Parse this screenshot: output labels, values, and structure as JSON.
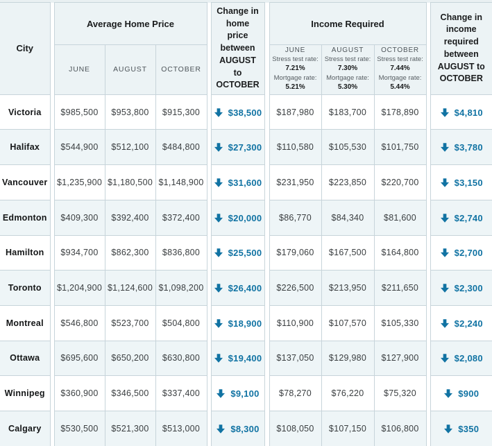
{
  "chart_data": {
    "type": "table",
    "header": {
      "city": "City",
      "home_price_group": "Average Home Price",
      "price_months": [
        "JUNE",
        "AUGUST",
        "OCTOBER"
      ],
      "change_price": "Change in home price between AUGUST to OCTOBER",
      "income_group": "Income Required",
      "income_months": [
        {
          "month": "JUNE",
          "stress_label": "Stress test rate:",
          "stress_rate": "7.21%",
          "mortgage_label": "Mortgage rate:",
          "mortgage_rate": "5.21%"
        },
        {
          "month": "AUGUST",
          "stress_label": "Stress test rate:",
          "stress_rate": "7.30%",
          "mortgage_label": "Mortgage rate:",
          "mortgage_rate": "5.30%"
        },
        {
          "month": "OCTOBER",
          "stress_label": "Stress test rate:",
          "stress_rate": "7.44%",
          "mortgage_label": "Mortgage rate:",
          "mortgage_rate": "5.44%"
        }
      ],
      "change_income": "Change in income required between AUGUST to OCTOBER"
    },
    "rows": [
      {
        "city": "Victoria",
        "price": [
          "$985,500",
          "$953,800",
          "$915,300"
        ],
        "price_change": "$38,500",
        "income": [
          "$187,980",
          "$183,700",
          "$178,890"
        ],
        "income_change": "$4,810",
        "change_direction": "down"
      },
      {
        "city": "Halifax",
        "price": [
          "$544,900",
          "$512,100",
          "$484,800"
        ],
        "price_change": "$27,300",
        "income": [
          "$110,580",
          "$105,530",
          "$101,750"
        ],
        "income_change": "$3,780",
        "change_direction": "down"
      },
      {
        "city": "Vancouver",
        "price": [
          "$1,235,900",
          "$1,180,500",
          "$1,148,900"
        ],
        "price_change": "$31,600",
        "income": [
          "$231,950",
          "$223,850",
          "$220,700"
        ],
        "income_change": "$3,150",
        "change_direction": "down"
      },
      {
        "city": "Edmonton",
        "price": [
          "$409,300",
          "$392,400",
          "$372,400"
        ],
        "price_change": "$20,000",
        "income": [
          "$86,770",
          "$84,340",
          "$81,600"
        ],
        "income_change": "$2,740",
        "change_direction": "down"
      },
      {
        "city": "Hamilton",
        "price": [
          "$934,700",
          "$862,300",
          "$836,800"
        ],
        "price_change": "$25,500",
        "income": [
          "$179,060",
          "$167,500",
          "$164,800"
        ],
        "income_change": "$2,700",
        "change_direction": "down"
      },
      {
        "city": "Toronto",
        "price": [
          "$1,204,900",
          "$1,124,600",
          "$1,098,200"
        ],
        "price_change": "$26,400",
        "income": [
          "$226,500",
          "$213,950",
          "$211,650"
        ],
        "income_change": "$2,300",
        "change_direction": "down"
      },
      {
        "city": "Montreal",
        "price": [
          "$546,800",
          "$523,700",
          "$504,800"
        ],
        "price_change": "$18,900",
        "income": [
          "$110,900",
          "$107,570",
          "$105,330"
        ],
        "income_change": "$2,240",
        "change_direction": "down"
      },
      {
        "city": "Ottawa",
        "price": [
          "$695,600",
          "$650,200",
          "$630,800"
        ],
        "price_change": "$19,400",
        "income": [
          "$137,050",
          "$129,980",
          "$127,900"
        ],
        "income_change": "$2,080",
        "change_direction": "down"
      },
      {
        "city": "Winnipeg",
        "price": [
          "$360,900",
          "$346,500",
          "$337,400"
        ],
        "price_change": "$9,100",
        "income": [
          "$78,270",
          "$76,220",
          "$75,320"
        ],
        "income_change": "$900",
        "change_direction": "down"
      },
      {
        "city": "Calgary",
        "price": [
          "$530,500",
          "$521,300",
          "$513,000"
        ],
        "price_change": "$8,300",
        "income": [
          "$108,050",
          "$107,150",
          "$106,800"
        ],
        "income_change": "$350",
        "change_direction": "down"
      }
    ],
    "colors": {
      "accent_blue": "#1173a3",
      "grid_line": "#c7d4da",
      "header_bg": "#ecf3f5",
      "row_alt_bg": "#eef5f7",
      "row_bg": "#ffffff",
      "page_bg": "#e9f0f2"
    },
    "legend_position": "none",
    "grid": true
  }
}
